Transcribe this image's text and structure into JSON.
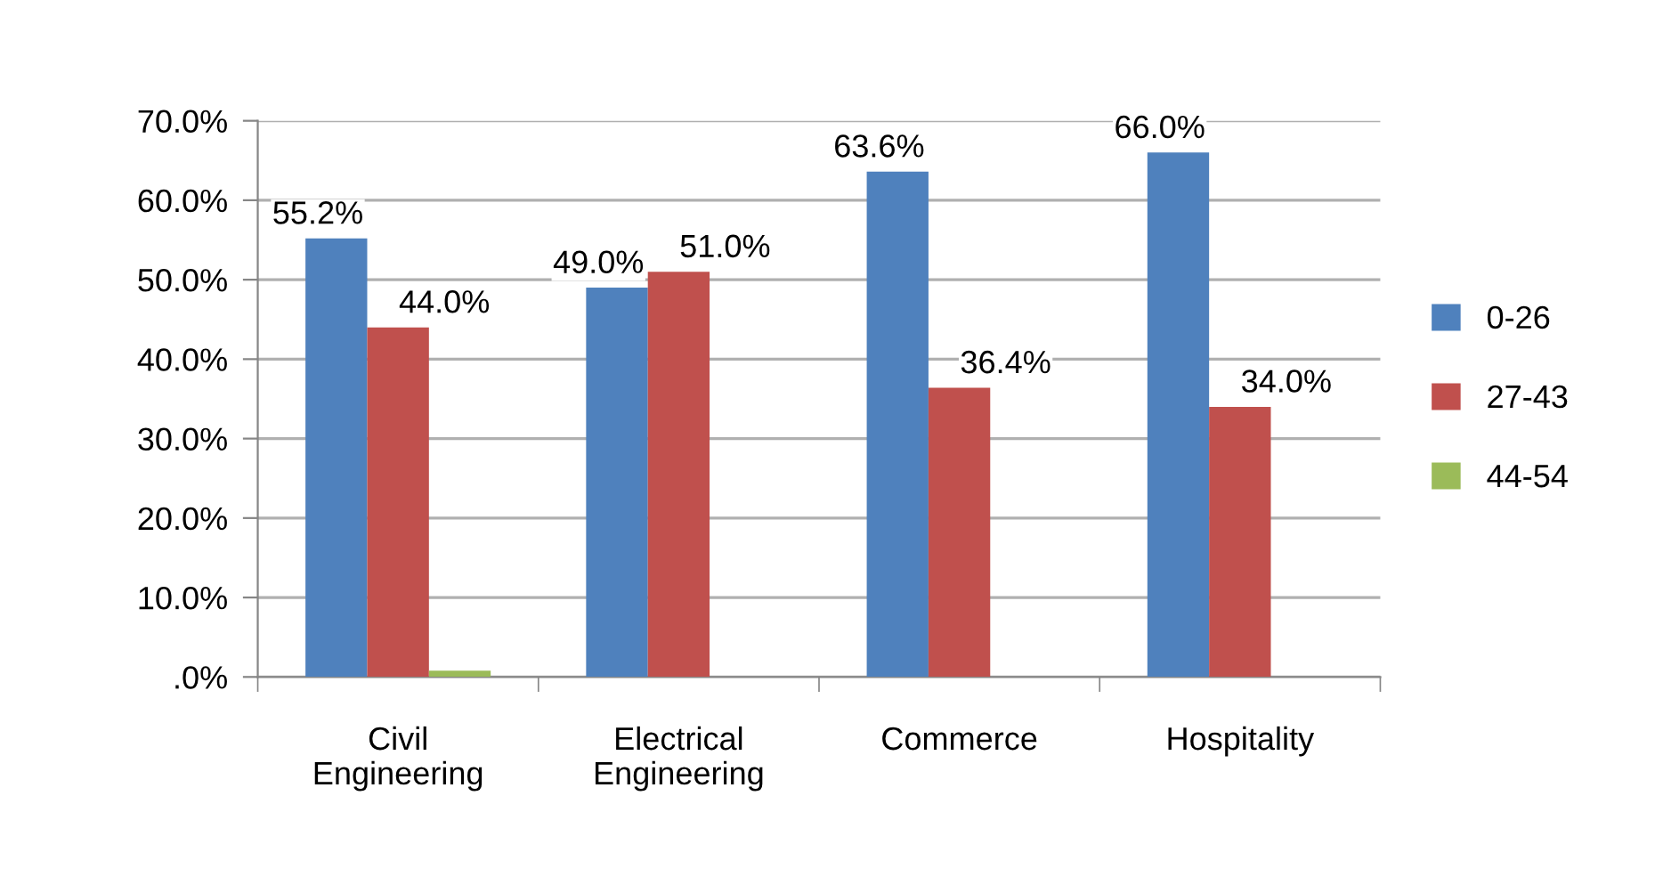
{
  "chart_data": {
    "type": "bar",
    "categories": [
      "Civil\nEngineering",
      "Electrical\nEngineering",
      "Commerce",
      "Hospitality"
    ],
    "series": [
      {
        "name": "0-26",
        "color": "#4f81bd",
        "values": [
          55.2,
          49.0,
          63.6,
          66.0
        ],
        "value_labels": [
          "55.2%",
          "49.0%",
          "63.6%",
          "66.0%"
        ]
      },
      {
        "name": "27-43",
        "color": "#c0504d",
        "values": [
          44.0,
          51.0,
          36.4,
          34.0
        ],
        "value_labels": [
          "44.0%",
          "51.0%",
          "36.4%",
          "34.0%"
        ]
      },
      {
        "name": "44-54",
        "color": "#9bbb59",
        "values": [
          0.8,
          0,
          0,
          0
        ]
      }
    ],
    "ylim": [
      0,
      70
    ],
    "yticks": [
      {
        "value": 0,
        "label": ".0%"
      },
      {
        "value": 10,
        "label": "10.0%"
      },
      {
        "value": 20,
        "label": "20.0%"
      },
      {
        "value": 30,
        "label": "30.0%"
      },
      {
        "value": 40,
        "label": "40.0%"
      },
      {
        "value": 50,
        "label": "50.0%"
      },
      {
        "value": 60,
        "label": "60.0%"
      },
      {
        "value": 70,
        "label": "70.0%"
      }
    ],
    "grid": "y",
    "legend": "right"
  }
}
